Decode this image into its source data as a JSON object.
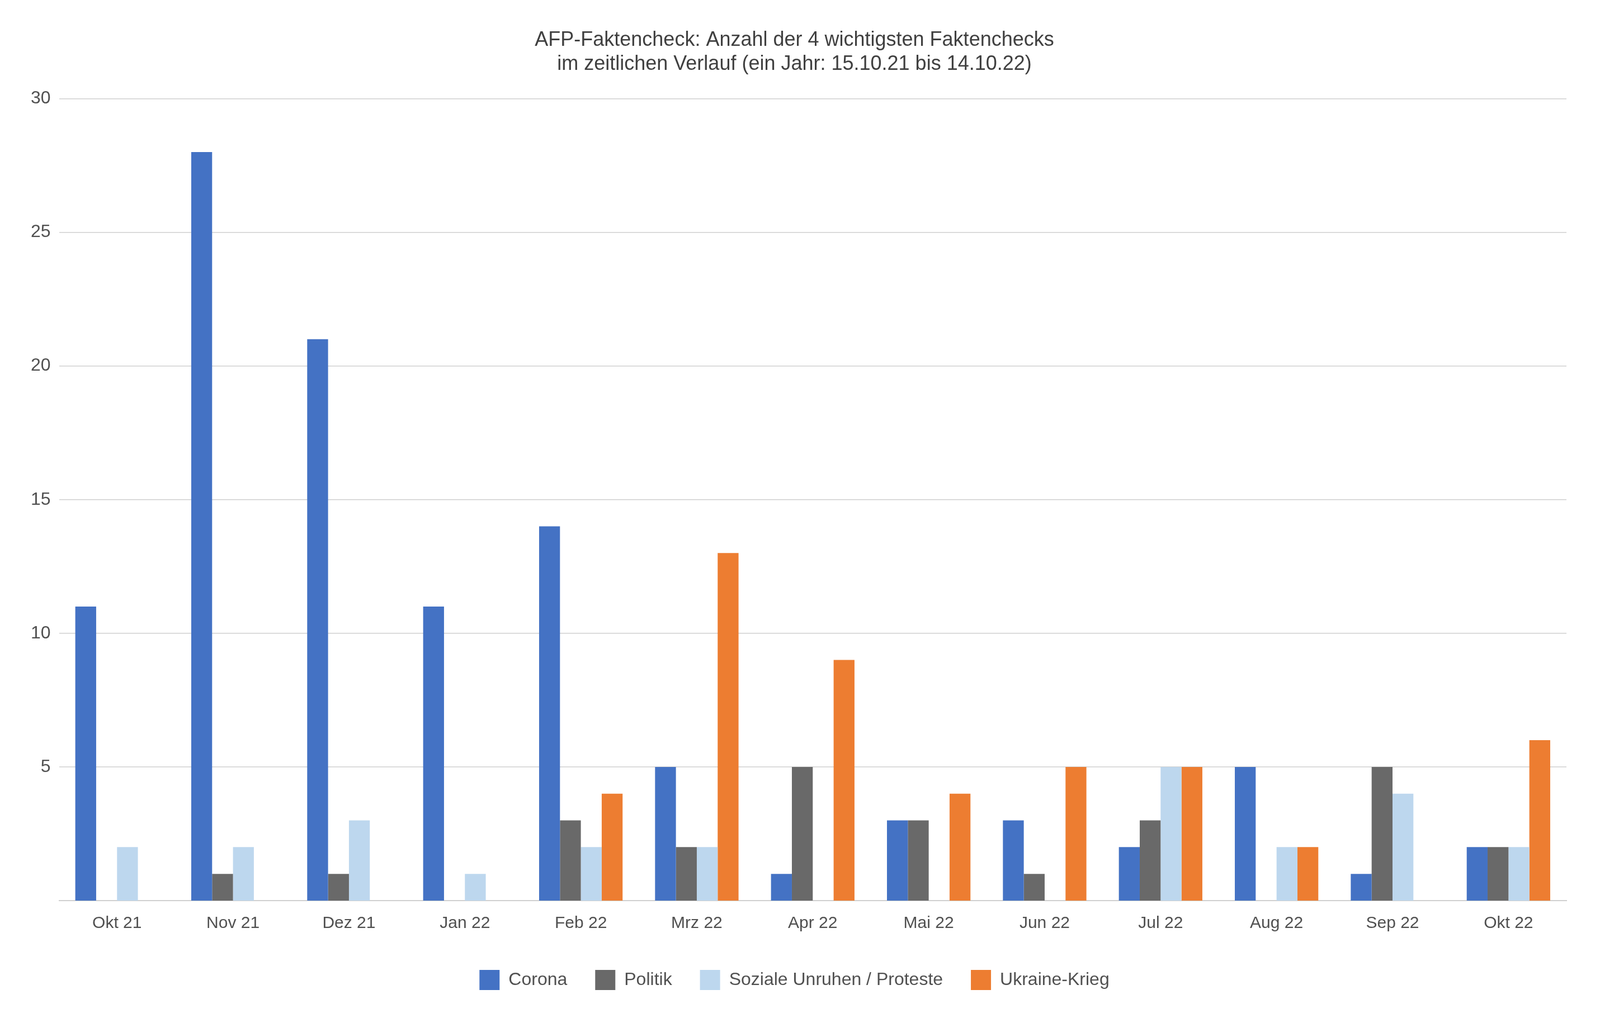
{
  "chart_data": {
    "type": "bar",
    "title": "AFP-Faktencheck: Anzahl der 4 wichtigsten Faktenchecks\nim zeitlichen Verlauf (ein Jahr: 15.10.21 bis 14.10.22)",
    "categories": [
      "Okt 21",
      "Nov 21",
      "Dez 21",
      "Jan 22",
      "Feb 22",
      "Mrz 22",
      "Apr 22",
      "Mai 22",
      "Jun 22",
      "Jul 22",
      "Aug 22",
      "Sep 22",
      "Okt 22"
    ],
    "series": [
      {
        "name": "Corona",
        "color": "#4472C4",
        "values": [
          11,
          28,
          21,
          11,
          14,
          5,
          1,
          3,
          3,
          2,
          5,
          1,
          2
        ]
      },
      {
        "name": "Politik",
        "color": "#696969",
        "values": [
          0,
          1,
          1,
          0,
          3,
          2,
          5,
          3,
          1,
          3,
          0,
          5,
          2
        ]
      },
      {
        "name": "Soziale Unruhen / Proteste",
        "color": "#BDD7EE",
        "values": [
          2,
          2,
          3,
          1,
          2,
          2,
          0,
          0,
          0,
          5,
          2,
          4,
          2
        ]
      },
      {
        "name": "Ukraine-Krieg",
        "color": "#ED7D31",
        "values": [
          0,
          0,
          0,
          0,
          4,
          13,
          9,
          4,
          5,
          5,
          2,
          0,
          6
        ]
      }
    ],
    "ylim": [
      0,
      30
    ],
    "yticks": [
      5,
      10,
      15,
      20,
      25,
      30
    ],
    "grid": true,
    "legend": "bottom"
  }
}
